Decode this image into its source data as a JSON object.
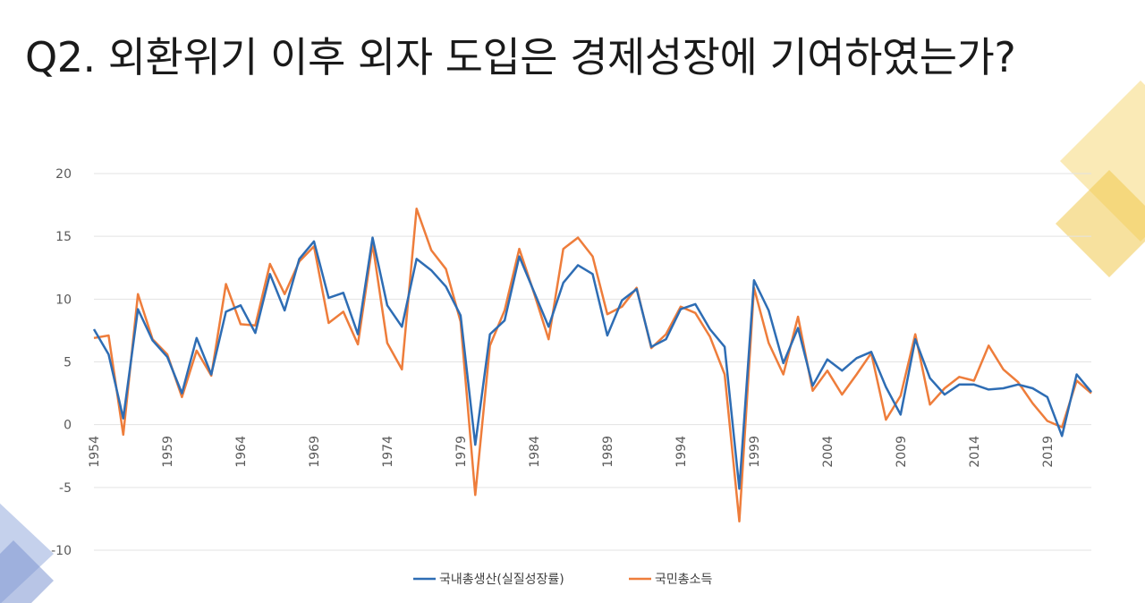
{
  "title": "Q2. 외환위기 이후 외자 도입은 경제성장에 기여하였는가?",
  "colors": {
    "gdp": "#2e6db4",
    "gni": "#ee7d3b",
    "grid": "#e3e3e3",
    "deco_yellow": "#f5d97a",
    "deco_blue": "#9fb3e0"
  },
  "chart_data": {
    "type": "line",
    "ylim": [
      -10,
      20
    ],
    "yticks": [
      -10,
      -5,
      0,
      5,
      10,
      15,
      20
    ],
    "ytick_labels": [
      "-10",
      "-5",
      "0",
      "5",
      "10",
      "15",
      "20"
    ],
    "xlim": [
      1954,
      2022
    ],
    "xticks": [
      1954,
      1959,
      1964,
      1969,
      1974,
      1979,
      1984,
      1989,
      1994,
      1999,
      2004,
      2009,
      2014,
      2019
    ],
    "xtick_labels": [
      "1954",
      "1959",
      "1964",
      "1969",
      "1974",
      "1979",
      "1984",
      "1989",
      "1994",
      "1999",
      "2004",
      "2009",
      "2014",
      "2019"
    ],
    "grid": true,
    "legend": "bottom-center",
    "x": [
      1954,
      1955,
      1956,
      1957,
      1958,
      1959,
      1960,
      1961,
      1962,
      1963,
      1964,
      1965,
      1966,
      1967,
      1968,
      1969,
      1970,
      1971,
      1972,
      1973,
      1974,
      1975,
      1976,
      1977,
      1978,
      1979,
      1980,
      1981,
      1982,
      1983,
      1984,
      1985,
      1986,
      1987,
      1988,
      1989,
      1990,
      1991,
      1992,
      1993,
      1994,
      1995,
      1996,
      1997,
      1998,
      1999,
      2000,
      2001,
      2002,
      2003,
      2004,
      2005,
      2006,
      2007,
      2008,
      2009,
      2010,
      2011,
      2012,
      2013,
      2014,
      2015,
      2016,
      2017,
      2018,
      2019,
      2020,
      2021,
      2022
    ],
    "series": [
      {
        "name": "국내총생산(실질성장률)",
        "color_key": "gdp",
        "values": [
          7.6,
          5.6,
          0.5,
          9.2,
          6.7,
          5.4,
          2.5,
          6.9,
          4.0,
          9.0,
          9.5,
          7.3,
          12.0,
          9.1,
          13.2,
          14.6,
          10.1,
          10.5,
          7.2,
          14.9,
          9.5,
          7.8,
          13.2,
          12.3,
          11.0,
          8.7,
          -1.6,
          7.2,
          8.3,
          13.4,
          10.6,
          7.8,
          11.3,
          12.7,
          12.0,
          7.1,
          9.9,
          10.8,
          6.2,
          6.8,
          9.2,
          9.6,
          7.6,
          6.2,
          -5.1,
          11.5,
          9.1,
          4.9,
          7.7,
          3.1,
          5.2,
          4.3,
          5.3,
          5.8,
          3.0,
          0.8,
          6.8,
          3.7,
          2.4,
          3.2,
          3.2,
          2.8,
          2.9,
          3.2,
          2.9,
          2.2,
          -0.9,
          4.0,
          2.6
        ]
      },
      {
        "name": "국민총소득",
        "color_key": "gni",
        "values": [
          6.9,
          7.1,
          -0.8,
          10.4,
          6.8,
          5.6,
          2.2,
          5.9,
          3.9,
          11.2,
          8.0,
          7.9,
          12.8,
          10.4,
          13.0,
          14.2,
          8.1,
          9.0,
          6.4,
          14.4,
          6.5,
          4.4,
          17.2,
          13.9,
          12.4,
          8.2,
          -5.6,
          6.3,
          9.1,
          14.0,
          10.5,
          6.8,
          14.0,
          14.9,
          13.4,
          8.8,
          9.4,
          10.9,
          6.1,
          7.2,
          9.4,
          8.9,
          7.0,
          4.0,
          -7.7,
          10.9,
          6.5,
          4.0,
          8.6,
          2.7,
          4.3,
          2.4,
          4.0,
          5.7,
          0.4,
          2.3,
          7.2,
          1.6,
          2.9,
          3.8,
          3.5,
          6.3,
          4.4,
          3.4,
          1.7,
          0.3,
          -0.2,
          3.5,
          2.5
        ]
      }
    ]
  }
}
